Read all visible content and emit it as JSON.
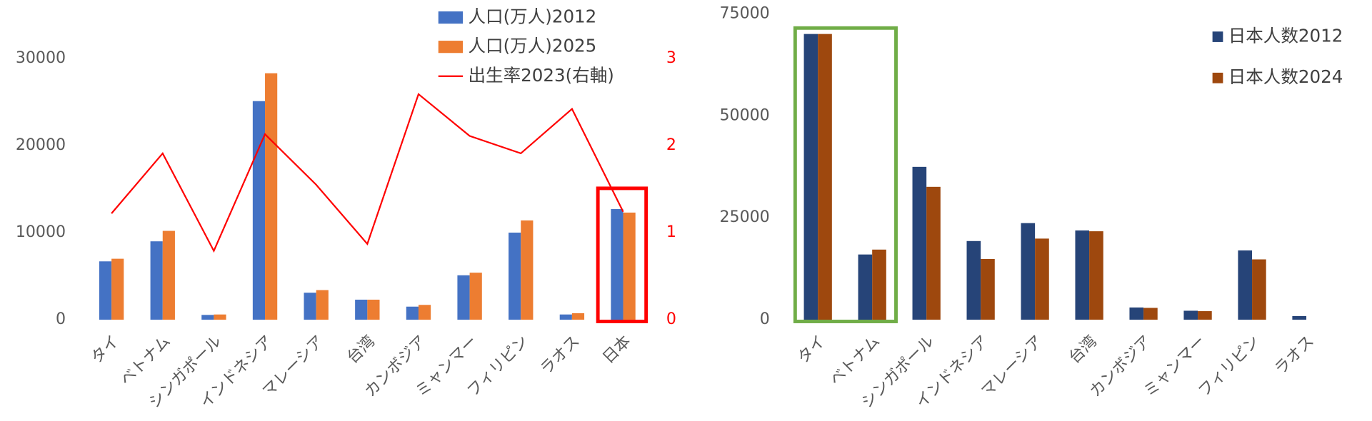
{
  "chart_data": [
    {
      "type": "bar",
      "categories": [
        "タイ",
        "ベトナム",
        "シンガポール",
        "インドネシア",
        "マレーシア",
        "台湾",
        "カンボジア",
        "ミャンマー",
        "フィリピン",
        "ラオス",
        "日本"
      ],
      "series": [
        {
          "name": "人口(万人)2012",
          "color": "#4472c4",
          "values": [
            6700,
            9000,
            550,
            25100,
            3100,
            2300,
            1500,
            5100,
            10000,
            600,
            12700
          ]
        },
        {
          "name": "人口(万人)2025",
          "color": "#ed7d31",
          "values": [
            7000,
            10200,
            600,
            28300,
            3400,
            2300,
            1700,
            5400,
            11400,
            750,
            12300
          ]
        },
        {
          "name": "出生率2023(右軸)",
          "color": "#ff0000",
          "type": "line",
          "axis": "y2",
          "values": [
            1.22,
            1.91,
            0.79,
            2.13,
            1.55,
            0.87,
            2.59,
            2.11,
            1.91,
            2.42,
            1.24
          ]
        }
      ],
      "ylim": [
        0,
        35000
      ],
      "yticks": [
        0,
        10000,
        20000,
        30000
      ],
      "y2lim": [
        0,
        3.5
      ],
      "y2ticks": [
        0,
        1,
        2,
        3
      ],
      "y2_color": "#ff0000"
    },
    {
      "type": "bar",
      "categories": [
        "タイ",
        "ベトナム",
        "シンガポール",
        "インドネシア",
        "マレーシア",
        "台湾",
        "カンボジア",
        "ミャンマー",
        "フィリピン",
        "ラオス"
      ],
      "series": [
        {
          "name": "日本人数2012",
          "color": "#264478",
          "values": [
            70100,
            16000,
            37500,
            19300,
            23700,
            21900,
            3000,
            2200,
            17000,
            900
          ]
        },
        {
          "name": "日本人数2024",
          "color": "#9e480e",
          "values": [
            70100,
            17200,
            32600,
            14900,
            19900,
            21700,
            2900,
            2100,
            14800,
            null
          ]
        }
      ],
      "ylim": [
        0,
        75000
      ],
      "yticks": [
        0,
        25000,
        50000,
        75000
      ]
    }
  ]
}
